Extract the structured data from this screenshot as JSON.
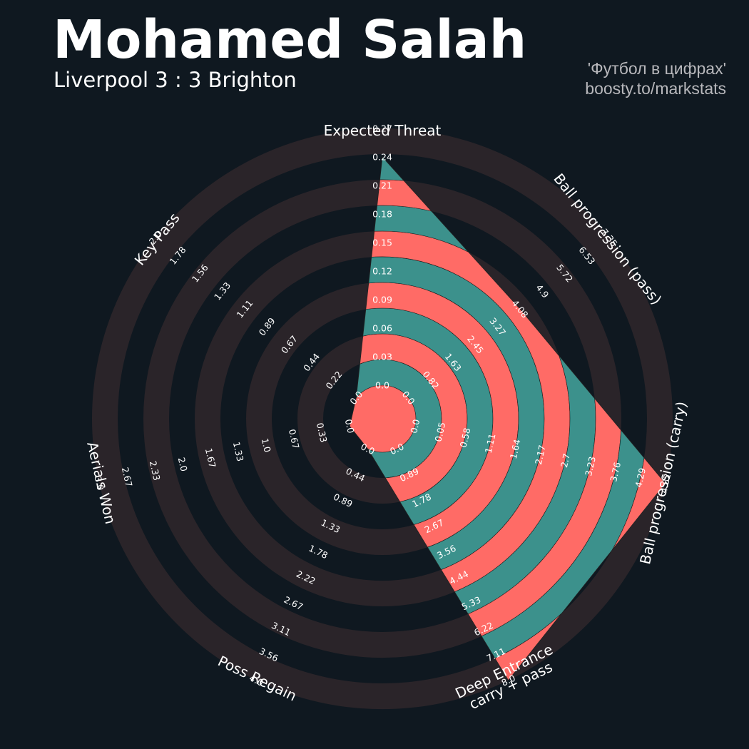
{
  "header": {
    "title": "Mohamed Salah",
    "subtitle": "Liverpool 3 : 3 Brighton",
    "credit_line1": "'Футбол в цифрах'",
    "credit_line2": "boosty.to/markstats"
  },
  "colors": {
    "background": "#0f1820",
    "ring": "#2a2429",
    "fill_a": "#3c918c",
    "fill_b": "#ff6b66",
    "text": "#ffffff",
    "credit": "#b8b8bc"
  },
  "chart_data": {
    "type": "radar",
    "title": "Mohamed Salah",
    "subtitle": "Liverpool 3 : 3 Brighton",
    "series": [
      {
        "name": "",
        "values": [
          0.24,
          4.08,
          4.82,
          8.0,
          0.0,
          0.0,
          0.0
        ]
      }
    ],
    "axes": [
      {
        "label": "Expected Threat",
        "min": 0.0,
        "max": 0.27,
        "ticks": [
          "0.0",
          "0.03",
          "0.06",
          "0.09",
          "0.12",
          "0.15",
          "0.18",
          "0.21",
          "0.24",
          "0.27"
        ]
      },
      {
        "label": "Ball progression (pass)",
        "min": 0.0,
        "max": 7.35,
        "ticks": [
          "0.0",
          "0.82",
          "1.63",
          "2.45",
          "3.27",
          "4.08",
          "4.9",
          "5.72",
          "6.53",
          "7.35"
        ]
      },
      {
        "label": "Ball progression (carry)",
        "min": 0.0,
        "max": 4.82,
        "ticks": [
          "0.0",
          "0.05",
          "0.58",
          "1.11",
          "1.64",
          "2.17",
          "2.7",
          "3.23",
          "3.76",
          "4.29",
          "4.82"
        ]
      },
      {
        "label": "Deep Entrance\ncarry + pass",
        "min": 0.0,
        "max": 8.0,
        "ticks": [
          "0.0",
          "0.89",
          "1.78",
          "2.67",
          "3.56",
          "4.44",
          "5.33",
          "6.22",
          "7.11",
          "8.0"
        ]
      },
      {
        "label": "Poss Regain",
        "min": 0.0,
        "max": 4.0,
        "ticks": [
          "0.0",
          "0.44",
          "0.89",
          "1.33",
          "1.78",
          "2.22",
          "2.67",
          "3.11",
          "3.56",
          "4.0"
        ]
      },
      {
        "label": "Aerials Won",
        "min": 0.0,
        "max": 3.0,
        "ticks": [
          "0.0",
          "0.33",
          "0.67",
          "1.0",
          "1.33",
          "1.67",
          "2.0",
          "2.33",
          "2.67",
          "3.0"
        ]
      },
      {
        "label": "Key Pass",
        "min": 0.0,
        "max": 2.0,
        "ticks": [
          "0.0",
          "0.22",
          "0.44",
          "0.67",
          "0.89",
          "1.11",
          "1.33",
          "1.56",
          "1.78",
          "2.0"
        ]
      }
    ]
  }
}
